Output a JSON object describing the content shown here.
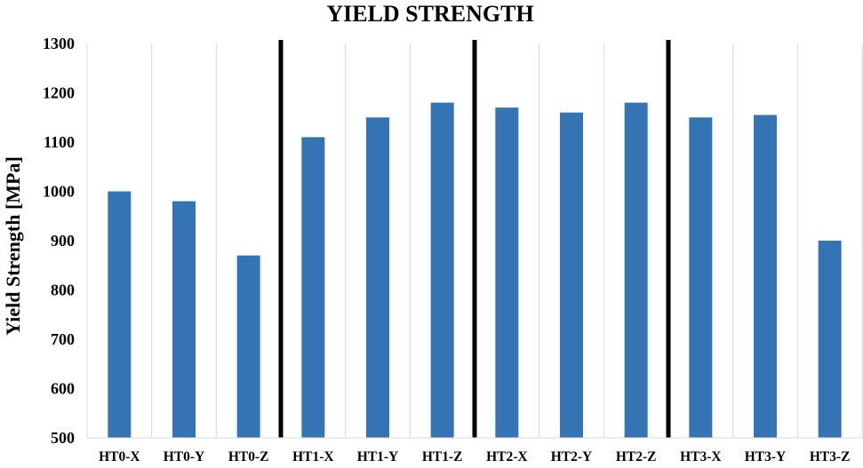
{
  "chart_data": {
    "type": "bar",
    "title": "YIELD STRENGTH",
    "xlabel": "",
    "ylabel": "Yield Strength [MPa]",
    "ylim": [
      500,
      1300
    ],
    "yticks": [
      500,
      600,
      700,
      800,
      900,
      1000,
      1100,
      1200,
      1300
    ],
    "grid": "vertical",
    "categories": [
      "HT0-X",
      "HT0-Y",
      "HT0-Z",
      "HT1-X",
      "HT1-Y",
      "HT1-Z",
      "HT2-X",
      "HT2-Y",
      "HT2-Z",
      "HT3-X",
      "HT3-Y",
      "HT3-Z"
    ],
    "values": [
      1000,
      980,
      870,
      1110,
      1150,
      1180,
      1170,
      1160,
      1180,
      1150,
      1155,
      900
    ],
    "group_separators_after": [
      3,
      6,
      9
    ],
    "bar_color": "#3474B3",
    "separator_color": "#000000",
    "grid_color": "#D9D9D9"
  }
}
